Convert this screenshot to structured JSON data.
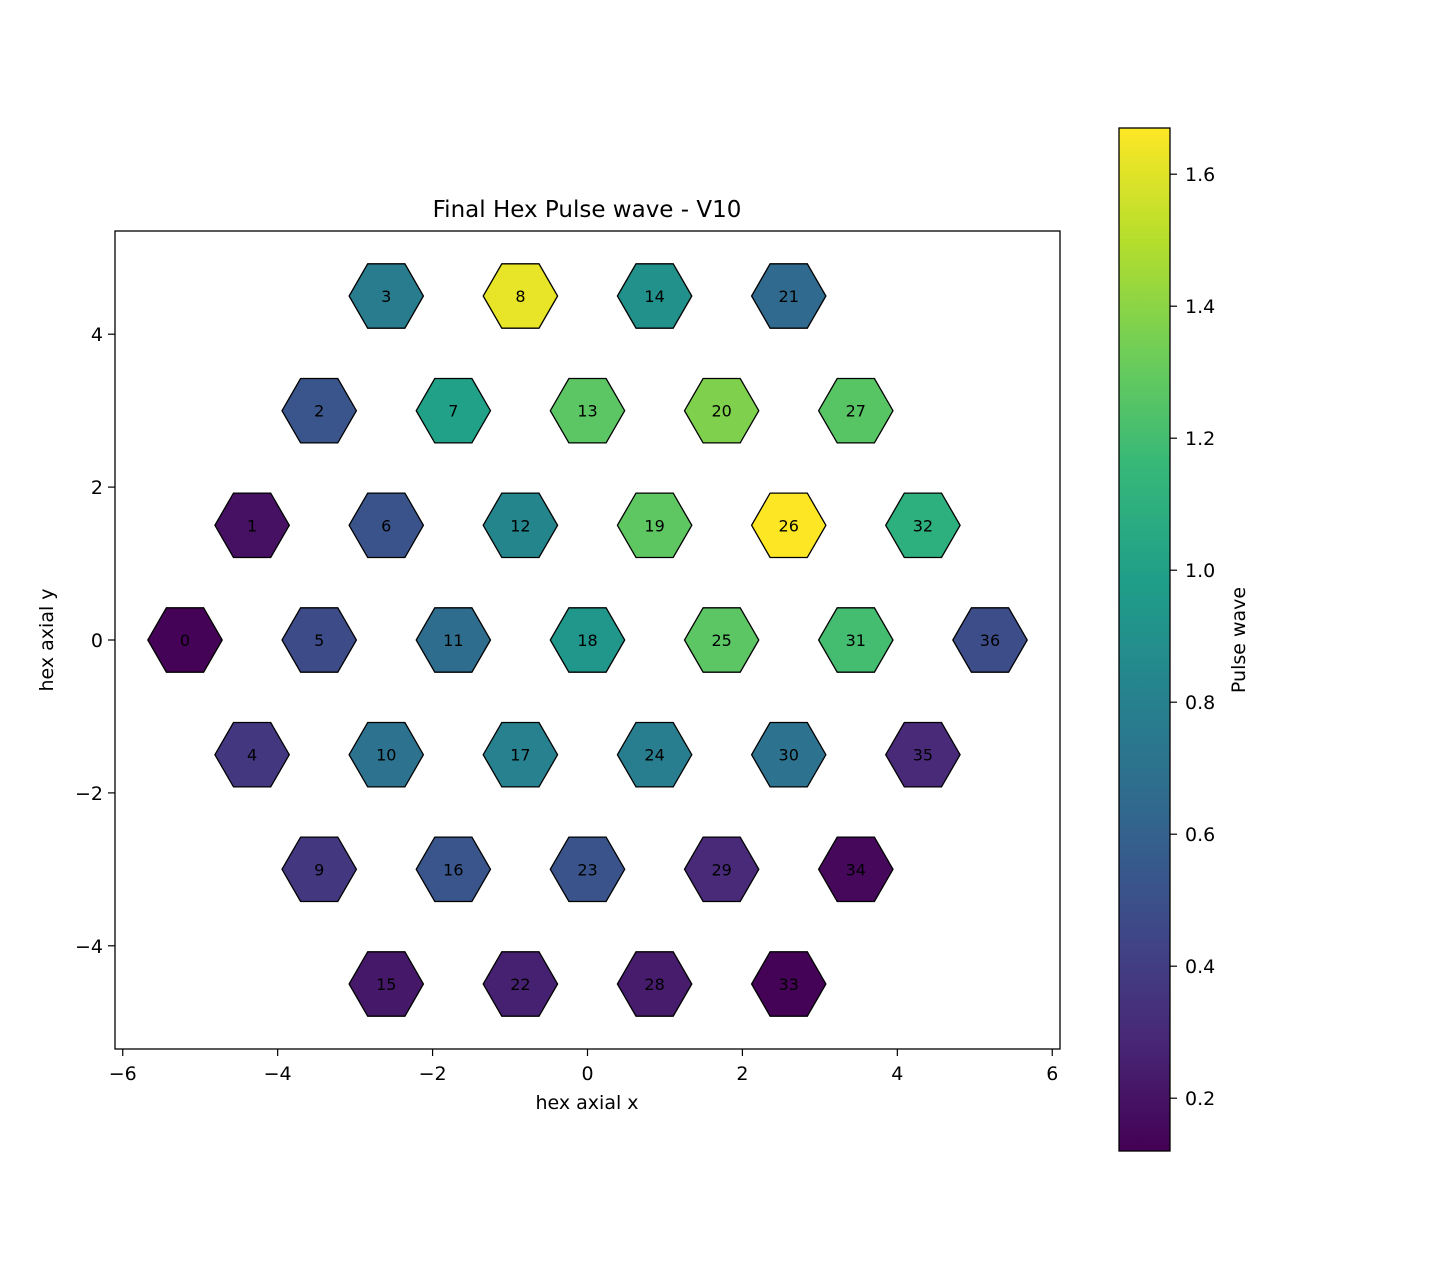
{
  "chart_data": {
    "type": "heatmap",
    "title": "Final Hex Pulse wave - V10",
    "xlabel": "hex axial x",
    "ylabel": "hex axial y",
    "xlim": [
      -6.1,
      6.1
    ],
    "ylim": [
      -5.35,
      5.35
    ],
    "xticks": [
      -6,
      -4,
      -2,
      0,
      2,
      4,
      6
    ],
    "yticks": [
      -4,
      -2,
      0,
      2,
      4
    ],
    "grid": false,
    "colormap": "viridis",
    "colorbar": {
      "label": "Pulse wave",
      "range": [
        0.12,
        1.67
      ],
      "ticks": [
        0.2,
        0.4,
        0.6,
        0.8,
        1.0,
        1.2,
        1.4,
        1.6
      ],
      "tick_labels": [
        "0.2",
        "0.4",
        "0.6",
        "0.8",
        "1.0",
        "1.2",
        "1.4",
        "1.6"
      ]
    },
    "cells": [
      {
        "id": "0",
        "x": -5.196,
        "y": 0.0,
        "value": 0.13
      },
      {
        "id": "1",
        "x": -4.33,
        "y": 1.5,
        "value": 0.19
      },
      {
        "id": "2",
        "x": -3.464,
        "y": 3.0,
        "value": 0.53
      },
      {
        "id": "3",
        "x": -2.598,
        "y": 4.5,
        "value": 0.77
      },
      {
        "id": "4",
        "x": -4.33,
        "y": -1.5,
        "value": 0.37
      },
      {
        "id": "5",
        "x": -3.464,
        "y": 0.0,
        "value": 0.47
      },
      {
        "id": "6",
        "x": -2.598,
        "y": 1.5,
        "value": 0.52
      },
      {
        "id": "7",
        "x": -1.732,
        "y": 3.0,
        "value": 1.0
      },
      {
        "id": "8",
        "x": -0.866,
        "y": 4.5,
        "value": 1.62
      },
      {
        "id": "9",
        "x": -3.464,
        "y": -3.0,
        "value": 0.37
      },
      {
        "id": "10",
        "x": -2.598,
        "y": -1.5,
        "value": 0.7
      },
      {
        "id": "11",
        "x": -1.732,
        "y": 0.0,
        "value": 0.67
      },
      {
        "id": "12",
        "x": -0.866,
        "y": 1.5,
        "value": 0.83
      },
      {
        "id": "13",
        "x": 0.0,
        "y": 3.0,
        "value": 1.27
      },
      {
        "id": "14",
        "x": 0.866,
        "y": 4.5,
        "value": 0.9
      },
      {
        "id": "15",
        "x": -2.598,
        "y": -4.5,
        "value": 0.22
      },
      {
        "id": "16",
        "x": -1.732,
        "y": -3.0,
        "value": 0.53
      },
      {
        "id": "17",
        "x": -0.866,
        "y": -1.5,
        "value": 0.8
      },
      {
        "id": "18",
        "x": 0.0,
        "y": 0.0,
        "value": 0.93
      },
      {
        "id": "19",
        "x": 0.866,
        "y": 1.5,
        "value": 1.28
      },
      {
        "id": "20",
        "x": 1.732,
        "y": 3.0,
        "value": 1.37
      },
      {
        "id": "21",
        "x": 2.598,
        "y": 4.5,
        "value": 0.65
      },
      {
        "id": "22",
        "x": -0.866,
        "y": -4.5,
        "value": 0.26
      },
      {
        "id": "23",
        "x": 0.0,
        "y": -3.0,
        "value": 0.52
      },
      {
        "id": "24",
        "x": 0.866,
        "y": -1.5,
        "value": 0.78
      },
      {
        "id": "25",
        "x": 1.732,
        "y": 0.0,
        "value": 1.27
      },
      {
        "id": "26",
        "x": 2.598,
        "y": 1.5,
        "value": 1.67
      },
      {
        "id": "27",
        "x": 3.464,
        "y": 3.0,
        "value": 1.26
      },
      {
        "id": "28",
        "x": 0.866,
        "y": -4.5,
        "value": 0.24
      },
      {
        "id": "29",
        "x": 1.732,
        "y": -3.0,
        "value": 0.3
      },
      {
        "id": "30",
        "x": 2.598,
        "y": -1.5,
        "value": 0.7
      },
      {
        "id": "31",
        "x": 3.464,
        "y": 0.0,
        "value": 1.2
      },
      {
        "id": "32",
        "x": 4.33,
        "y": 1.5,
        "value": 1.1
      },
      {
        "id": "33",
        "x": 2.598,
        "y": -4.5,
        "value": 0.13
      },
      {
        "id": "34",
        "x": 3.464,
        "y": -3.0,
        "value": 0.15
      },
      {
        "id": "35",
        "x": 4.33,
        "y": -1.5,
        "value": 0.3
      },
      {
        "id": "36",
        "x": 5.196,
        "y": 0.0,
        "value": 0.48
      }
    ]
  }
}
